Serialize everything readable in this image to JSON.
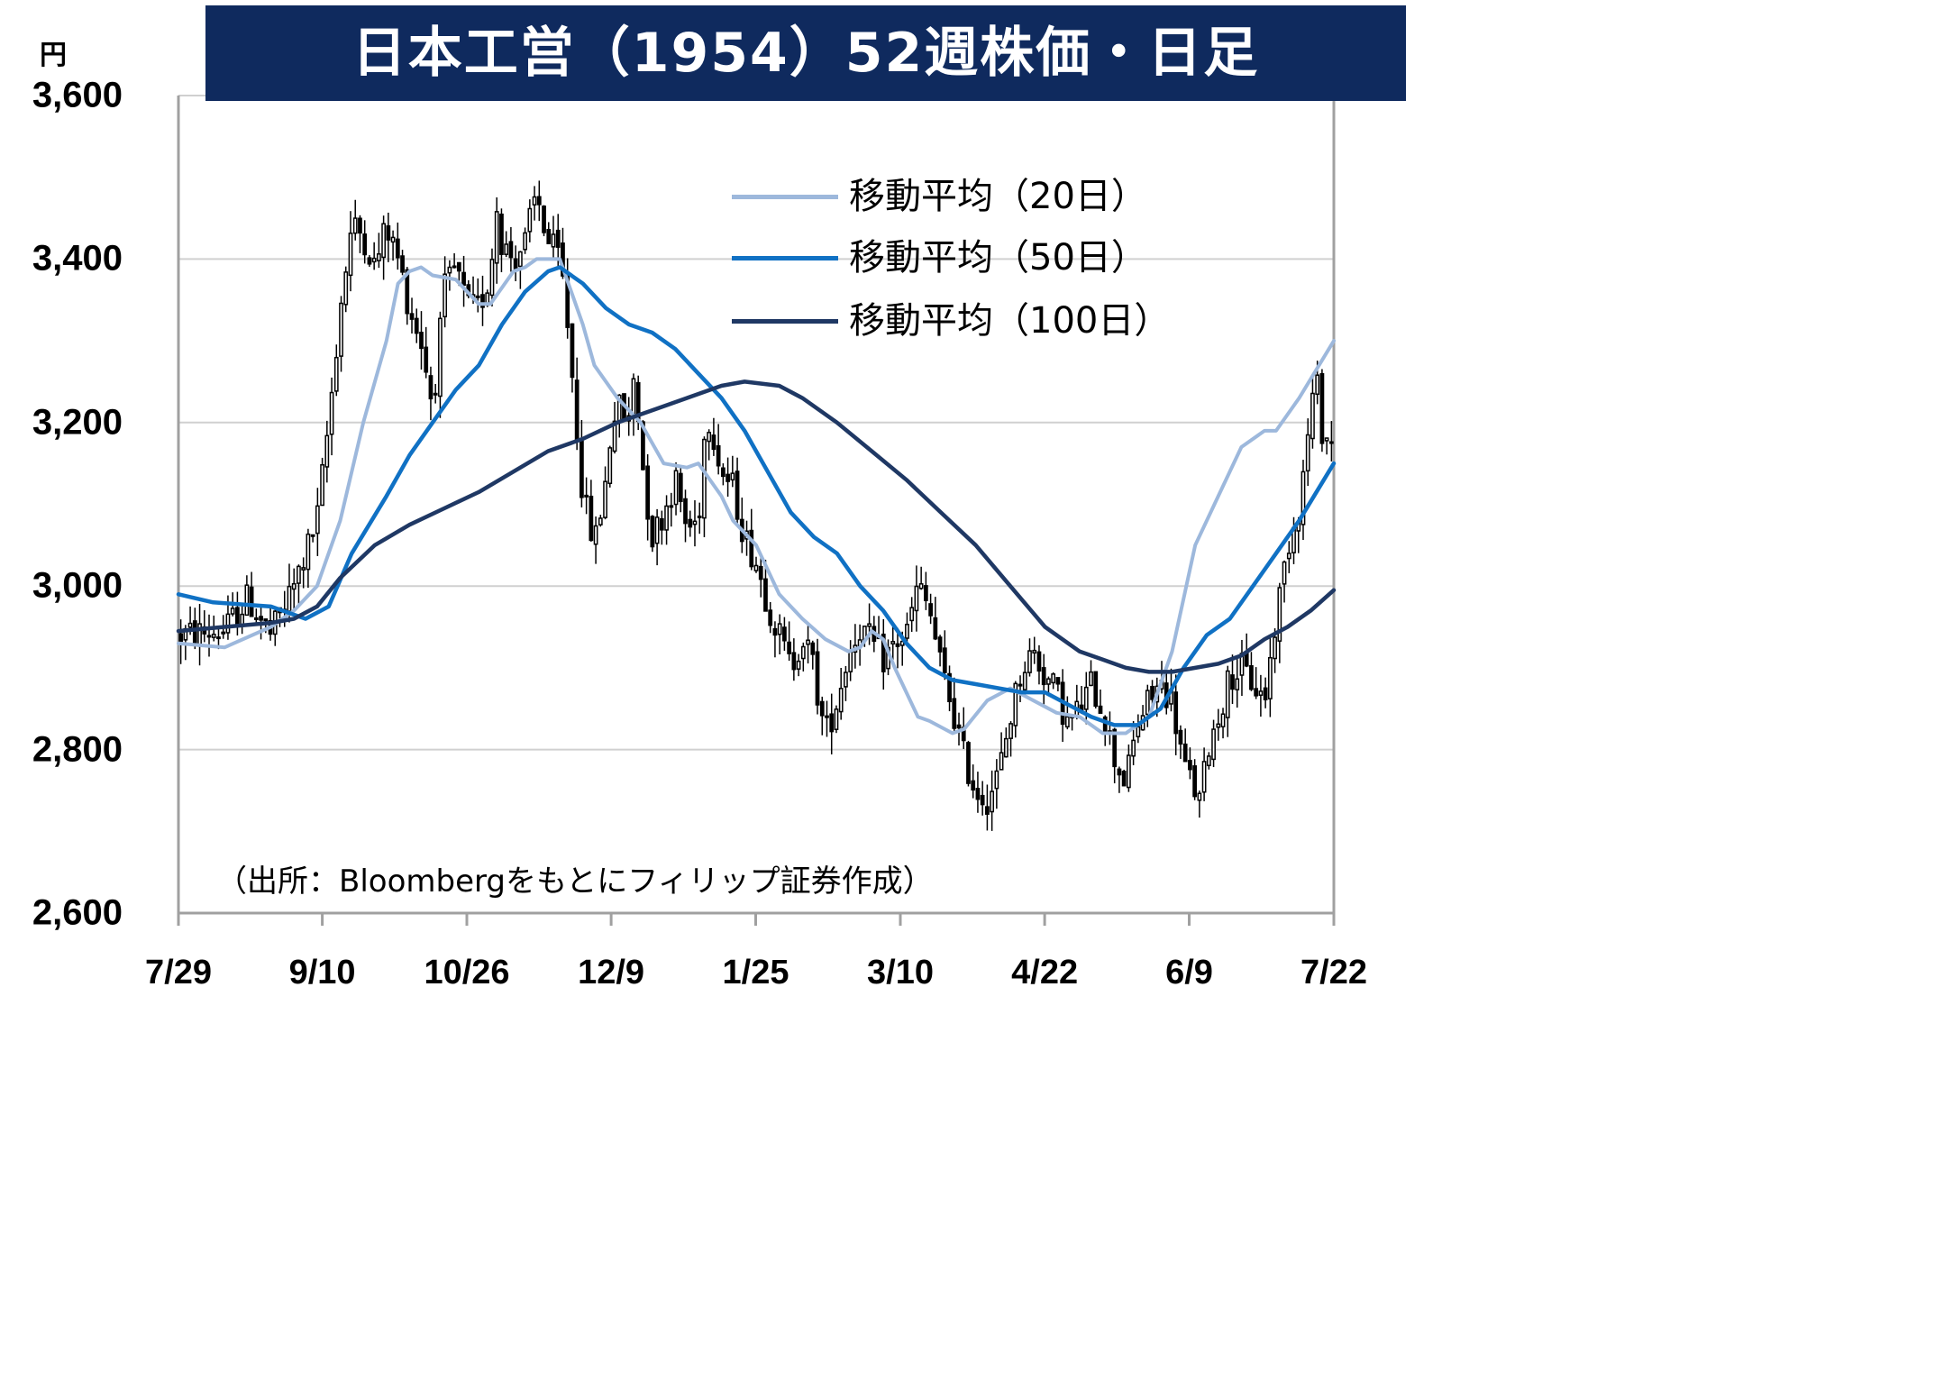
{
  "title": "日本工営（1954）52週株価・日足",
  "unit": "円",
  "source": "（出所：Bloombergをもとにフィリップ証券作成）",
  "colors": {
    "title_bg": "#0f2a5e",
    "ma20": "#9db8dc",
    "ma50": "#1071c4",
    "ma100": "#1f3864",
    "grid": "#d0d0d0",
    "candle": "#000000"
  },
  "chart_data": {
    "type": "candlestick",
    "ylim": [
      2600,
      3600
    ],
    "yticks": [
      2600,
      2800,
      3000,
      3200,
      3400,
      3600
    ],
    "ytick_labels": [
      "2,600",
      "2,800",
      "3,000",
      "3,200",
      "3,400",
      "3,600"
    ],
    "xticks": [
      {
        "label": "7/29",
        "t": 0
      },
      {
        "label": "9/10",
        "t": 0.1245
      },
      {
        "label": "10/26",
        "t": 0.2496
      },
      {
        "label": "12/9",
        "t": 0.3745
      },
      {
        "label": "1/25",
        "t": 0.4996
      },
      {
        "label": "3/10",
        "t": 0.6248
      },
      {
        "label": "4/22",
        "t": 0.7497
      },
      {
        "label": "6/9",
        "t": 0.8748
      },
      {
        "label": "7/22",
        "t": 1
      }
    ],
    "legend": [
      "移動平均（20日）",
      "移動平均（50日）",
      "移動平均（100日）"
    ],
    "legend_position": "top-right",
    "grid": "horizontal",
    "series": [
      {
        "name": "移動平均（20日）",
        "key": "ma20",
        "points": [
          [
            0,
            2930
          ],
          [
            0.04,
            2925
          ],
          [
            0.08,
            2950
          ],
          [
            0.1,
            2970
          ],
          [
            0.12,
            3000
          ],
          [
            0.14,
            3080
          ],
          [
            0.16,
            3200
          ],
          [
            0.18,
            3300
          ],
          [
            0.19,
            3370
          ],
          [
            0.2,
            3385
          ],
          [
            0.21,
            3390
          ],
          [
            0.22,
            3380
          ],
          [
            0.24,
            3375
          ],
          [
            0.25,
            3360
          ],
          [
            0.26,
            3345
          ],
          [
            0.27,
            3345
          ],
          [
            0.28,
            3365
          ],
          [
            0.29,
            3385
          ],
          [
            0.3,
            3390
          ],
          [
            0.31,
            3400
          ],
          [
            0.33,
            3400
          ],
          [
            0.35,
            3320
          ],
          [
            0.36,
            3270
          ],
          [
            0.38,
            3230
          ],
          [
            0.4,
            3200
          ],
          [
            0.42,
            3150
          ],
          [
            0.44,
            3145
          ],
          [
            0.45,
            3150
          ],
          [
            0.47,
            3110
          ],
          [
            0.48,
            3080
          ],
          [
            0.5,
            3050
          ],
          [
            0.52,
            2990
          ],
          [
            0.54,
            2960
          ],
          [
            0.56,
            2935
          ],
          [
            0.58,
            2920
          ],
          [
            0.59,
            2925
          ],
          [
            0.6,
            2945
          ],
          [
            0.61,
            2935
          ],
          [
            0.62,
            2900
          ],
          [
            0.64,
            2840
          ],
          [
            0.65,
            2835
          ],
          [
            0.67,
            2820
          ],
          [
            0.68,
            2825
          ],
          [
            0.7,
            2860
          ],
          [
            0.72,
            2875
          ],
          [
            0.74,
            2860
          ],
          [
            0.76,
            2845
          ],
          [
            0.78,
            2840
          ],
          [
            0.8,
            2820
          ],
          [
            0.82,
            2820
          ],
          [
            0.84,
            2840
          ],
          [
            0.86,
            2920
          ],
          [
            0.88,
            3050
          ],
          [
            0.9,
            3110
          ],
          [
            0.92,
            3170
          ],
          [
            0.94,
            3190
          ],
          [
            0.95,
            3190
          ],
          [
            0.97,
            3230
          ],
          [
            1,
            3300
          ]
        ]
      },
      {
        "name": "移動平均（50日）",
        "key": "ma50",
        "points": [
          [
            0,
            2990
          ],
          [
            0.03,
            2980
          ],
          [
            0.08,
            2975
          ],
          [
            0.11,
            2960
          ],
          [
            0.13,
            2975
          ],
          [
            0.15,
            3040
          ],
          [
            0.18,
            3110
          ],
          [
            0.2,
            3160
          ],
          [
            0.22,
            3200
          ],
          [
            0.24,
            3240
          ],
          [
            0.26,
            3270
          ],
          [
            0.28,
            3320
          ],
          [
            0.3,
            3360
          ],
          [
            0.32,
            3385
          ],
          [
            0.33,
            3390
          ],
          [
            0.35,
            3370
          ],
          [
            0.37,
            3340
          ],
          [
            0.39,
            3320
          ],
          [
            0.41,
            3310
          ],
          [
            0.43,
            3290
          ],
          [
            0.45,
            3260
          ],
          [
            0.47,
            3230
          ],
          [
            0.49,
            3190
          ],
          [
            0.51,
            3140
          ],
          [
            0.53,
            3090
          ],
          [
            0.55,
            3060
          ],
          [
            0.57,
            3040
          ],
          [
            0.59,
            3000
          ],
          [
            0.61,
            2970
          ],
          [
            0.63,
            2930
          ],
          [
            0.65,
            2900
          ],
          [
            0.67,
            2885
          ],
          [
            0.69,
            2880
          ],
          [
            0.71,
            2875
          ],
          [
            0.73,
            2870
          ],
          [
            0.75,
            2870
          ],
          [
            0.77,
            2855
          ],
          [
            0.79,
            2840
          ],
          [
            0.81,
            2830
          ],
          [
            0.83,
            2830
          ],
          [
            0.85,
            2850
          ],
          [
            0.87,
            2900
          ],
          [
            0.89,
            2940
          ],
          [
            0.91,
            2960
          ],
          [
            0.93,
            3000
          ],
          [
            0.95,
            3040
          ],
          [
            0.97,
            3080
          ],
          [
            1,
            3150
          ]
        ]
      },
      {
        "name": "移動平均（100日）",
        "key": "ma100",
        "points": [
          [
            0,
            2945
          ],
          [
            0.04,
            2950
          ],
          [
            0.08,
            2955
          ],
          [
            0.1,
            2960
          ],
          [
            0.12,
            2975
          ],
          [
            0.14,
            3010
          ],
          [
            0.17,
            3050
          ],
          [
            0.2,
            3075
          ],
          [
            0.23,
            3095
          ],
          [
            0.26,
            3115
          ],
          [
            0.29,
            3140
          ],
          [
            0.32,
            3165
          ],
          [
            0.35,
            3180
          ],
          [
            0.38,
            3200
          ],
          [
            0.41,
            3215
          ],
          [
            0.44,
            3230
          ],
          [
            0.47,
            3245
          ],
          [
            0.49,
            3250
          ],
          [
            0.52,
            3245
          ],
          [
            0.54,
            3230
          ],
          [
            0.57,
            3200
          ],
          [
            0.6,
            3165
          ],
          [
            0.63,
            3130
          ],
          [
            0.66,
            3090
          ],
          [
            0.69,
            3050
          ],
          [
            0.72,
            3000
          ],
          [
            0.75,
            2950
          ],
          [
            0.78,
            2920
          ],
          [
            0.8,
            2910
          ],
          [
            0.82,
            2900
          ],
          [
            0.84,
            2895
          ],
          [
            0.86,
            2895
          ],
          [
            0.88,
            2900
          ],
          [
            0.9,
            2905
          ],
          [
            0.92,
            2915
          ],
          [
            0.94,
            2935
          ],
          [
            0.96,
            2950
          ],
          [
            0.98,
            2970
          ],
          [
            1,
            2995
          ]
        ]
      }
    ],
    "price_path": [
      [
        0,
        2940
      ],
      [
        0.04,
        2945
      ],
      [
        0.06,
        2985
      ],
      [
        0.08,
        2940
      ],
      [
        0.1,
        3000
      ],
      [
        0.12,
        3080
      ],
      [
        0.13,
        3200
      ],
      [
        0.14,
        3340
      ],
      [
        0.15,
        3440
      ],
      [
        0.16,
        3430
      ],
      [
        0.17,
        3390
      ],
      [
        0.18,
        3440
      ],
      [
        0.19,
        3400
      ],
      [
        0.2,
        3340
      ],
      [
        0.21,
        3300
      ],
      [
        0.215,
        3260
      ],
      [
        0.22,
        3220
      ],
      [
        0.23,
        3360
      ],
      [
        0.24,
        3390
      ],
      [
        0.25,
        3340
      ],
      [
        0.26,
        3340
      ],
      [
        0.27,
        3380
      ],
      [
        0.275,
        3470
      ],
      [
        0.28,
        3420
      ],
      [
        0.29,
        3400
      ],
      [
        0.3,
        3420
      ],
      [
        0.31,
        3480
      ],
      [
        0.32,
        3420
      ],
      [
        0.33,
        3400
      ],
      [
        0.335,
        3350
      ],
      [
        0.34,
        3270
      ],
      [
        0.35,
        3110
      ],
      [
        0.36,
        3050
      ],
      [
        0.37,
        3130
      ],
      [
        0.375,
        3200
      ],
      [
        0.38,
        3220
      ],
      [
        0.39,
        3200
      ],
      [
        0.395,
        3270
      ],
      [
        0.4,
        3170
      ],
      [
        0.405,
        3110
      ],
      [
        0.41,
        3060
      ],
      [
        0.42,
        3090
      ],
      [
        0.43,
        3130
      ],
      [
        0.44,
        3070
      ],
      [
        0.45,
        3080
      ],
      [
        0.455,
        3180
      ],
      [
        0.46,
        3210
      ],
      [
        0.47,
        3140
      ],
      [
        0.48,
        3120
      ],
      [
        0.49,
        3060
      ],
      [
        0.5,
        3030
      ],
      [
        0.51,
        2980
      ],
      [
        0.52,
        2940
      ],
      [
        0.53,
        2900
      ],
      [
        0.54,
        2940
      ],
      [
        0.55,
        2900
      ],
      [
        0.555,
        2850
      ],
      [
        0.56,
        2820
      ],
      [
        0.57,
        2860
      ],
      [
        0.58,
        2920
      ],
      [
        0.59,
        2950
      ],
      [
        0.6,
        2930
      ],
      [
        0.61,
        2910
      ],
      [
        0.62,
        2930
      ],
      [
        0.63,
        2940
      ],
      [
        0.64,
        3000
      ],
      [
        0.65,
        2970
      ],
      [
        0.66,
        2900
      ],
      [
        0.67,
        2850
      ],
      [
        0.68,
        2790
      ],
      [
        0.69,
        2750
      ],
      [
        0.7,
        2740
      ],
      [
        0.71,
        2770
      ],
      [
        0.72,
        2840
      ],
      [
        0.73,
        2900
      ],
      [
        0.74,
        2920
      ],
      [
        0.75,
        2890
      ],
      [
        0.76,
        2870
      ],
      [
        0.77,
        2830
      ],
      [
        0.78,
        2850
      ],
      [
        0.79,
        2880
      ],
      [
        0.8,
        2850
      ],
      [
        0.81,
        2790
      ],
      [
        0.82,
        2760
      ],
      [
        0.83,
        2830
      ],
      [
        0.84,
        2860
      ],
      [
        0.85,
        2880
      ],
      [
        0.86,
        2860
      ],
      [
        0.87,
        2780
      ],
      [
        0.88,
        2750
      ],
      [
        0.885,
        2730
      ],
      [
        0.89,
        2800
      ],
      [
        0.9,
        2840
      ],
      [
        0.91,
        2890
      ],
      [
        0.92,
        2900
      ],
      [
        0.93,
        2880
      ],
      [
        0.94,
        2860
      ],
      [
        0.95,
        2960
      ],
      [
        0.96,
        3050
      ],
      [
        0.97,
        3100
      ],
      [
        0.975,
        3150
      ],
      [
        0.98,
        3220
      ],
      [
        0.985,
        3250
      ],
      [
        0.99,
        3190
      ],
      [
        1,
        3170
      ]
    ]
  }
}
